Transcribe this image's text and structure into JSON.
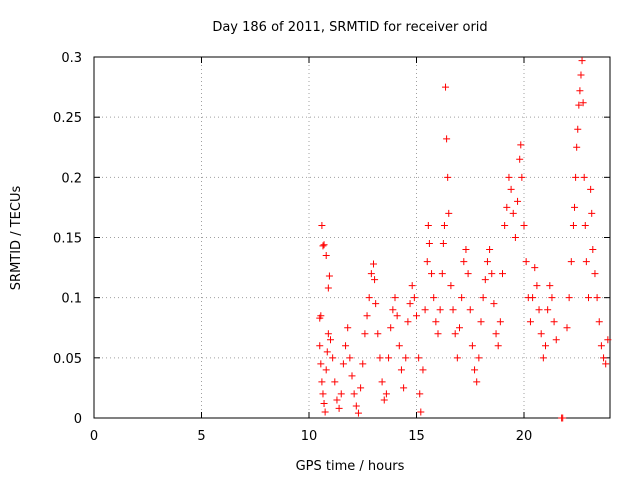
{
  "chart_data": {
    "type": "scatter",
    "title": "Day 186 of 2011, SRMTID for receiver orid",
    "xlabel": "GPS time / hours",
    "ylabel": "SRMTID / TECUs",
    "xlim": [
      0,
      24
    ],
    "ylim": [
      0,
      0.3
    ],
    "x_ticks": [
      0,
      5,
      10,
      15,
      20
    ],
    "x_tick_labels": [
      "0",
      "5",
      "10",
      "15",
      "20"
    ],
    "y_ticks": [
      0,
      0.05,
      0.1,
      0.15,
      0.2,
      0.25,
      0.3
    ],
    "y_tick_labels": [
      "0",
      "0.05",
      "0.1",
      "0.15",
      "0.2",
      "0.25",
      "0.3"
    ],
    "grid": true,
    "marker": "+",
    "color": "#ff0000",
    "series": [
      {
        "name": "SRMTID",
        "points": [
          [
            10.5,
            0.083
          ],
          [
            10.55,
            0.085
          ],
          [
            10.6,
            0.16
          ],
          [
            10.65,
            0.143
          ],
          [
            10.7,
            0.144
          ],
          [
            10.8,
            0.135
          ],
          [
            10.9,
            0.108
          ],
          [
            10.95,
            0.118
          ],
          [
            10.5,
            0.06
          ],
          [
            10.55,
            0.045
          ],
          [
            10.6,
            0.03
          ],
          [
            10.65,
            0.02
          ],
          [
            10.7,
            0.012
          ],
          [
            10.75,
            0.005
          ],
          [
            10.8,
            0.04
          ],
          [
            10.85,
            0.055
          ],
          [
            10.9,
            0.07
          ],
          [
            11.0,
            0.065
          ],
          [
            11.1,
            0.05
          ],
          [
            11.2,
            0.03
          ],
          [
            11.3,
            0.015
          ],
          [
            11.4,
            0.008
          ],
          [
            11.5,
            0.02
          ],
          [
            11.6,
            0.045
          ],
          [
            11.7,
            0.06
          ],
          [
            11.8,
            0.075
          ],
          [
            11.9,
            0.05
          ],
          [
            12.0,
            0.035
          ],
          [
            12.1,
            0.02
          ],
          [
            12.2,
            0.01
          ],
          [
            12.3,
            0.004
          ],
          [
            12.4,
            0.025
          ],
          [
            12.5,
            0.045
          ],
          [
            12.6,
            0.07
          ],
          [
            12.7,
            0.085
          ],
          [
            12.8,
            0.1
          ],
          [
            12.9,
            0.12
          ],
          [
            13.0,
            0.128
          ],
          [
            13.05,
            0.115
          ],
          [
            13.1,
            0.095
          ],
          [
            13.2,
            0.07
          ],
          [
            13.3,
            0.05
          ],
          [
            13.4,
            0.03
          ],
          [
            13.5,
            0.015
          ],
          [
            13.6,
            0.02
          ],
          [
            13.7,
            0.05
          ],
          [
            13.8,
            0.075
          ],
          [
            13.9,
            0.09
          ],
          [
            14.0,
            0.1
          ],
          [
            14.1,
            0.085
          ],
          [
            14.2,
            0.06
          ],
          [
            14.3,
            0.04
          ],
          [
            14.4,
            0.025
          ],
          [
            14.5,
            0.05
          ],
          [
            14.6,
            0.08
          ],
          [
            14.7,
            0.095
          ],
          [
            14.8,
            0.11
          ],
          [
            14.9,
            0.1
          ],
          [
            15.0,
            0.085
          ],
          [
            15.1,
            0.05
          ],
          [
            15.15,
            0.02
          ],
          [
            15.2,
            0.005
          ],
          [
            15.3,
            0.04
          ],
          [
            15.4,
            0.09
          ],
          [
            15.5,
            0.13
          ],
          [
            15.55,
            0.16
          ],
          [
            15.6,
            0.145
          ],
          [
            15.7,
            0.12
          ],
          [
            15.8,
            0.1
          ],
          [
            15.9,
            0.08
          ],
          [
            16.0,
            0.07
          ],
          [
            16.1,
            0.09
          ],
          [
            16.2,
            0.12
          ],
          [
            16.25,
            0.145
          ],
          [
            16.3,
            0.16
          ],
          [
            16.35,
            0.275
          ],
          [
            16.4,
            0.232
          ],
          [
            16.45,
            0.2
          ],
          [
            16.5,
            0.17
          ],
          [
            16.6,
            0.11
          ],
          [
            16.7,
            0.09
          ],
          [
            16.8,
            0.07
          ],
          [
            16.9,
            0.05
          ],
          [
            17.0,
            0.075
          ],
          [
            17.1,
            0.1
          ],
          [
            17.2,
            0.13
          ],
          [
            17.3,
            0.14
          ],
          [
            17.4,
            0.12
          ],
          [
            17.5,
            0.09
          ],
          [
            17.6,
            0.06
          ],
          [
            17.7,
            0.04
          ],
          [
            17.8,
            0.03
          ],
          [
            17.9,
            0.05
          ],
          [
            18.0,
            0.08
          ],
          [
            18.1,
            0.1
          ],
          [
            18.2,
            0.115
          ],
          [
            18.3,
            0.13
          ],
          [
            18.4,
            0.14
          ],
          [
            18.5,
            0.12
          ],
          [
            18.6,
            0.095
          ],
          [
            18.7,
            0.07
          ],
          [
            18.8,
            0.06
          ],
          [
            18.9,
            0.08
          ],
          [
            19.0,
            0.12
          ],
          [
            19.1,
            0.16
          ],
          [
            19.2,
            0.175
          ],
          [
            19.3,
            0.2
          ],
          [
            19.4,
            0.19
          ],
          [
            19.5,
            0.17
          ],
          [
            19.6,
            0.15
          ],
          [
            19.7,
            0.18
          ],
          [
            19.8,
            0.215
          ],
          [
            19.85,
            0.227
          ],
          [
            19.9,
            0.2
          ],
          [
            20.0,
            0.16
          ],
          [
            20.1,
            0.13
          ],
          [
            20.2,
            0.1
          ],
          [
            20.3,
            0.08
          ],
          [
            20.4,
            0.1
          ],
          [
            20.5,
            0.125
          ],
          [
            20.6,
            0.11
          ],
          [
            20.7,
            0.09
          ],
          [
            20.8,
            0.07
          ],
          [
            20.9,
            0.05
          ],
          [
            21.0,
            0.06
          ],
          [
            21.1,
            0.09
          ],
          [
            21.2,
            0.11
          ],
          [
            21.3,
            0.1
          ],
          [
            21.4,
            0.08
          ],
          [
            21.5,
            0.065
          ],
          [
            21.75,
            0.0
          ],
          [
            21.8,
            0.0
          ],
          [
            22.0,
            0.075
          ],
          [
            22.1,
            0.1
          ],
          [
            22.2,
            0.13
          ],
          [
            22.3,
            0.16
          ],
          [
            22.35,
            0.175
          ],
          [
            22.4,
            0.2
          ],
          [
            22.45,
            0.225
          ],
          [
            22.5,
            0.24
          ],
          [
            22.55,
            0.26
          ],
          [
            22.6,
            0.272
          ],
          [
            22.65,
            0.285
          ],
          [
            22.7,
            0.297
          ],
          [
            22.75,
            0.262
          ],
          [
            22.8,
            0.2
          ],
          [
            22.85,
            0.16
          ],
          [
            22.9,
            0.13
          ],
          [
            23.0,
            0.1
          ],
          [
            23.1,
            0.19
          ],
          [
            23.15,
            0.17
          ],
          [
            23.2,
            0.14
          ],
          [
            23.3,
            0.12
          ],
          [
            23.4,
            0.1
          ],
          [
            23.5,
            0.08
          ],
          [
            23.6,
            0.06
          ],
          [
            23.7,
            0.05
          ],
          [
            23.8,
            0.045
          ],
          [
            23.9,
            0.065
          ]
        ]
      }
    ]
  }
}
